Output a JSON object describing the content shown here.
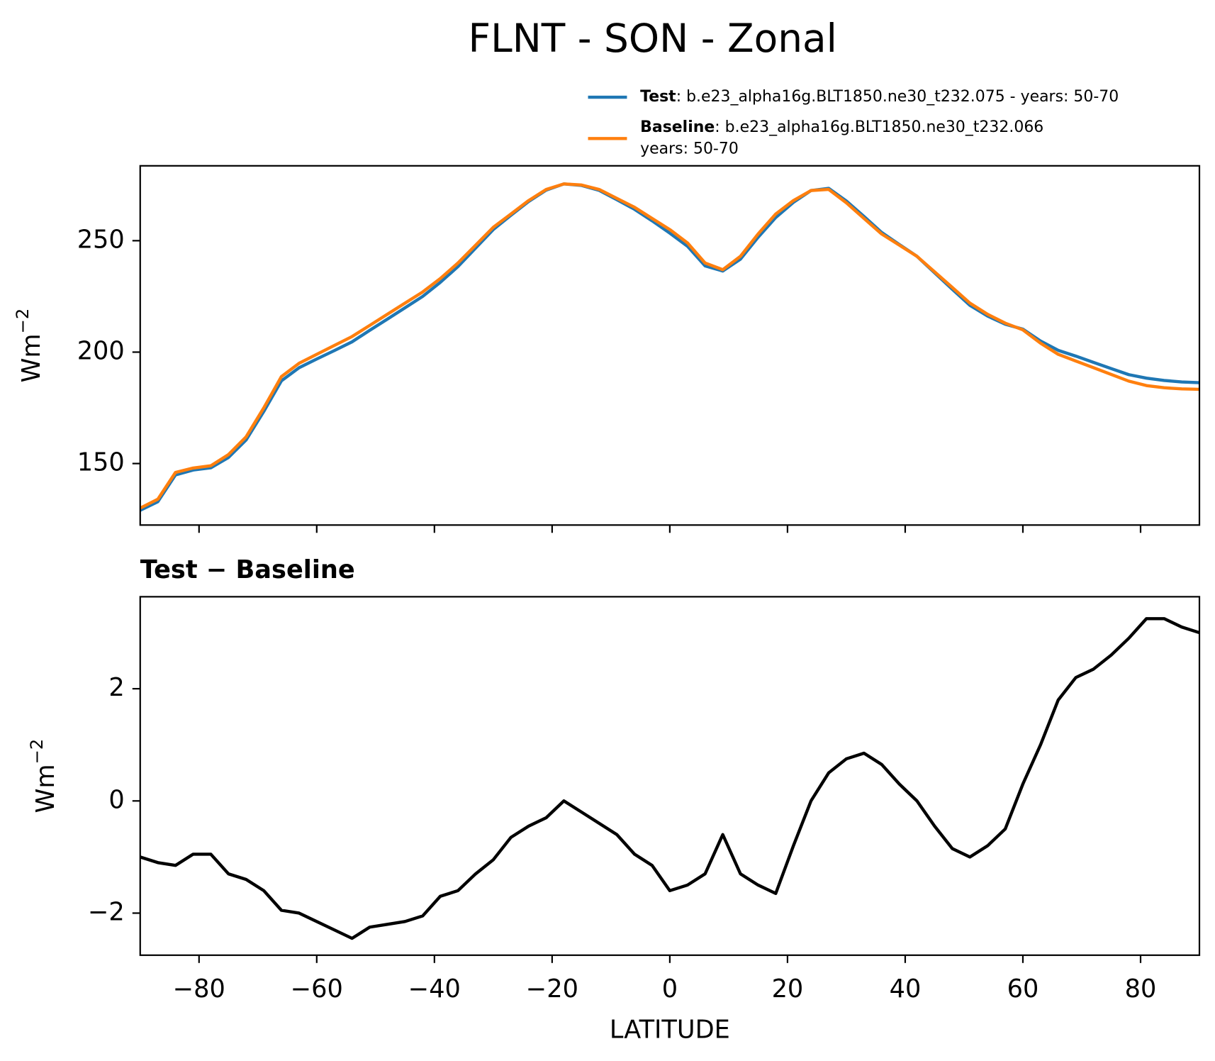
{
  "chart_data": [
    {
      "type": "line",
      "title": "FLNT - SON - Zonal",
      "ylabel": "Wm",
      "ylabel_sup": "−2",
      "x": [
        -90,
        -87,
        -84,
        -81,
        -78,
        -75,
        -72,
        -69,
        -66,
        -63,
        -60,
        -57,
        -54,
        -51,
        -48,
        -45,
        -42,
        -39,
        -36,
        -33,
        -30,
        -27,
        -24,
        -21,
        -18,
        -15,
        -12,
        -9,
        -6,
        -3,
        0,
        3,
        6,
        9,
        12,
        15,
        18,
        21,
        24,
        27,
        30,
        33,
        36,
        39,
        42,
        45,
        48,
        51,
        54,
        57,
        60,
        63,
        66,
        69,
        72,
        75,
        78,
        81,
        84,
        87,
        90
      ],
      "series": [
        {
          "name": "Test",
          "description": [
            ": b.e23_alpha16g.BLT1850.ne30_t232.075 - years: 50-70"
          ],
          "color": "#1f77b4",
          "values": [
            129,
            132.9,
            144.9,
            147.1,
            148.1,
            152.7,
            160.6,
            173.4,
            187.1,
            193,
            196.9,
            200.7,
            204.6,
            209.8,
            214.8,
            219.9,
            225,
            231.3,
            238.4,
            246.7,
            255,
            261.4,
            267.6,
            272.7,
            275.5,
            274.8,
            272.6,
            268.4,
            264.1,
            258.9,
            253.4,
            247.5,
            238.7,
            236.4,
            241.7,
            251.5,
            260.4,
            267.2,
            272.5,
            273.5,
            267.8,
            260.9,
            253.7,
            248.3,
            243,
            235.6,
            228.2,
            221,
            216.2,
            212.5,
            210.3,
            205,
            200.8,
            198.2,
            195.4,
            192.6,
            189.9,
            188.3,
            187.3,
            186.6,
            186.3
          ]
        },
        {
          "name": "Baseline",
          "description": [
            ": b.e23_alpha16g.BLT1850.ne30_t232.066",
            "years: 50-70"
          ],
          "color": "#ff7f0e",
          "values": [
            130,
            134,
            146,
            148,
            149,
            154,
            162,
            175,
            189,
            195,
            199,
            203,
            207,
            212,
            217,
            222,
            227,
            233,
            240,
            248,
            256,
            262,
            268,
            273,
            275.5,
            275,
            273,
            269,
            265,
            260,
            255,
            249,
            240,
            237,
            243,
            253,
            262,
            268,
            272.5,
            273,
            267,
            260,
            253,
            248,
            243,
            236,
            229,
            222,
            217,
            213,
            210,
            204,
            199,
            196,
            193,
            190,
            187,
            185,
            184,
            183.5,
            183.3
          ]
        }
      ],
      "xlim": [
        -90,
        90
      ],
      "xticks": [
        -80,
        -60,
        -40,
        -20,
        0,
        20,
        40,
        60,
        80
      ],
      "ylim": [
        122.4,
        283.6
      ],
      "yticks": [
        150,
        200,
        250
      ]
    },
    {
      "type": "line",
      "title": "Test − Baseline",
      "xlabel": "LATITUDE",
      "ylabel": "Wm",
      "ylabel_sup": "−2",
      "color": "#000000",
      "x": [
        -90,
        -87,
        -84,
        -81,
        -78,
        -75,
        -72,
        -69,
        -66,
        -63,
        -60,
        -57,
        -54,
        -51,
        -48,
        -45,
        -42,
        -39,
        -36,
        -33,
        -30,
        -27,
        -24,
        -21,
        -18,
        -15,
        -12,
        -9,
        -6,
        -3,
        0,
        3,
        6,
        9,
        12,
        15,
        18,
        21,
        24,
        27,
        30,
        33,
        36,
        39,
        42,
        45,
        48,
        51,
        54,
        57,
        60,
        63,
        66,
        69,
        72,
        75,
        78,
        81,
        84,
        87,
        90
      ],
      "values": [
        -1.0,
        -1.1,
        -1.15,
        -0.95,
        -0.95,
        -1.3,
        -1.4,
        -1.6,
        -1.95,
        -2.0,
        -2.15,
        -2.3,
        -2.45,
        -2.25,
        -2.2,
        -2.15,
        -2.05,
        -1.7,
        -1.6,
        -1.3,
        -1.05,
        -0.65,
        -0.45,
        -0.3,
        0.0,
        -0.2,
        -0.4,
        -0.6,
        -0.95,
        -1.15,
        -1.6,
        -1.5,
        -1.3,
        -0.6,
        -1.3,
        -1.5,
        -1.65,
        -0.8,
        0.0,
        0.5,
        0.75,
        0.85,
        0.65,
        0.3,
        0.0,
        -0.45,
        -0.85,
        -1.0,
        -0.8,
        -0.5,
        0.3,
        1.0,
        1.8,
        2.2,
        2.35,
        2.6,
        2.9,
        3.25,
        3.25,
        3.1,
        3.0
      ],
      "xlim": [
        -90,
        90
      ],
      "xticks": [
        {
          "value": -80,
          "label": "−80"
        },
        {
          "value": -60,
          "label": "−60"
        },
        {
          "value": -40,
          "label": "−40"
        },
        {
          "value": -20,
          "label": "−20"
        },
        0,
        20,
        40,
        60,
        80
      ],
      "ylim": [
        -2.75,
        3.64
      ],
      "yticks": [
        {
          "value": -2,
          "label": "−2"
        },
        0,
        2
      ]
    }
  ]
}
